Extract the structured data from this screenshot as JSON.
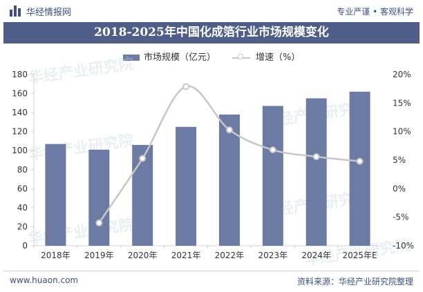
{
  "header": {
    "brand": "华经情报网",
    "slogan": "专业严谨 • 客观科学"
  },
  "title": "2018-2025年中国化成箔行业市场规模变化",
  "footer": {
    "website": "www.huaon.com",
    "source": "资料来源：华经产业研究院整理"
  },
  "watermark": "华经产业研究院",
  "colors": {
    "bar": "#6b7ba3",
    "line": "#c7c7c7",
    "title_band": "#4f5e89",
    "brand": "#3d4e7f"
  },
  "chart_data": {
    "type": "bar",
    "categories": [
      "2018年",
      "2019年",
      "2020年",
      "2021年",
      "2022年",
      "2023年",
      "2024年",
      "2025年E"
    ],
    "series": [
      {
        "name": "市场规模（亿元）",
        "type": "bar",
        "axis": "left",
        "values": [
          107,
          101,
          106,
          125,
          138,
          147,
          155,
          162
        ]
      },
      {
        "name": "增速（%）",
        "type": "line",
        "axis": "right",
        "values": [
          null,
          -6.0,
          5.3,
          17.9,
          10.3,
          6.8,
          5.6,
          4.8
        ]
      }
    ],
    "y_left": {
      "min": 0,
      "max": 180,
      "step": 20,
      "ticks": [
        "0",
        "20",
        "40",
        "60",
        "80",
        "100",
        "120",
        "140",
        "160",
        "180"
      ]
    },
    "y_right": {
      "min": -10,
      "max": 20,
      "step": 5,
      "ticks": [
        "-10%",
        "-5%",
        "0%",
        "5%",
        "10%",
        "15%",
        "20%"
      ]
    },
    "legend_position": "top-center",
    "grid": false
  }
}
